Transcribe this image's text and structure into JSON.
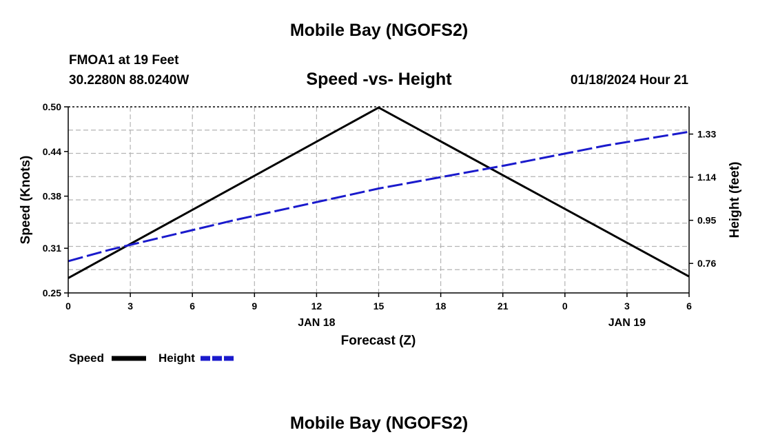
{
  "page": {
    "title": "Mobile Bay (NGOFS2)",
    "footer_title": "Mobile Bay (NGOFS2)",
    "station": "FMOA1 at 19 Feet",
    "coords": "30.2280N  88.0240W",
    "chart_title": "Speed -vs- Height",
    "timestamp": "01/18/2024 Hour 21"
  },
  "colors": {
    "speed": "#000000",
    "height": "#1a1acc",
    "grid": "#b4b4b4"
  },
  "chart_data": {
    "type": "line",
    "title": "Speed -vs- Height",
    "xlabel": "Forecast (Z)",
    "ylabel_left": "Speed (Knots)",
    "ylabel_right": "Height (feet)",
    "x_ticks": [
      "0",
      "3",
      "6",
      "9",
      "12",
      "15",
      "18",
      "21",
      "0",
      "3",
      "6"
    ],
    "date_labels": [
      {
        "label": "JAN 18",
        "tick_index": 4
      },
      {
        "label": "JAN 19",
        "tick_index": 9
      }
    ],
    "xlim": [
      0,
      30
    ],
    "ylim_left": [
      0.25,
      0.5
    ],
    "left_ticks": [
      "0.25",
      "0.31",
      "0.38",
      "0.44",
      "0.50"
    ],
    "ylim_right": [
      0.63,
      1.45
    ],
    "right_ticks": [
      "0.76",
      "0.95",
      "1.14",
      "1.33"
    ],
    "grid": true,
    "legend_position": "bottom-left",
    "series": [
      {
        "name": "Speed",
        "axis": "left",
        "style": "solid",
        "x": [
          0,
          15,
          30
        ],
        "y": [
          0.27,
          0.499,
          0.272
        ]
      },
      {
        "name": "Height",
        "axis": "right",
        "style": "dashed",
        "x": [
          0,
          2,
          8,
          15,
          21,
          26,
          30
        ],
        "y": [
          0.77,
          0.82,
          0.95,
          1.09,
          1.19,
          1.28,
          1.34
        ]
      }
    ]
  }
}
